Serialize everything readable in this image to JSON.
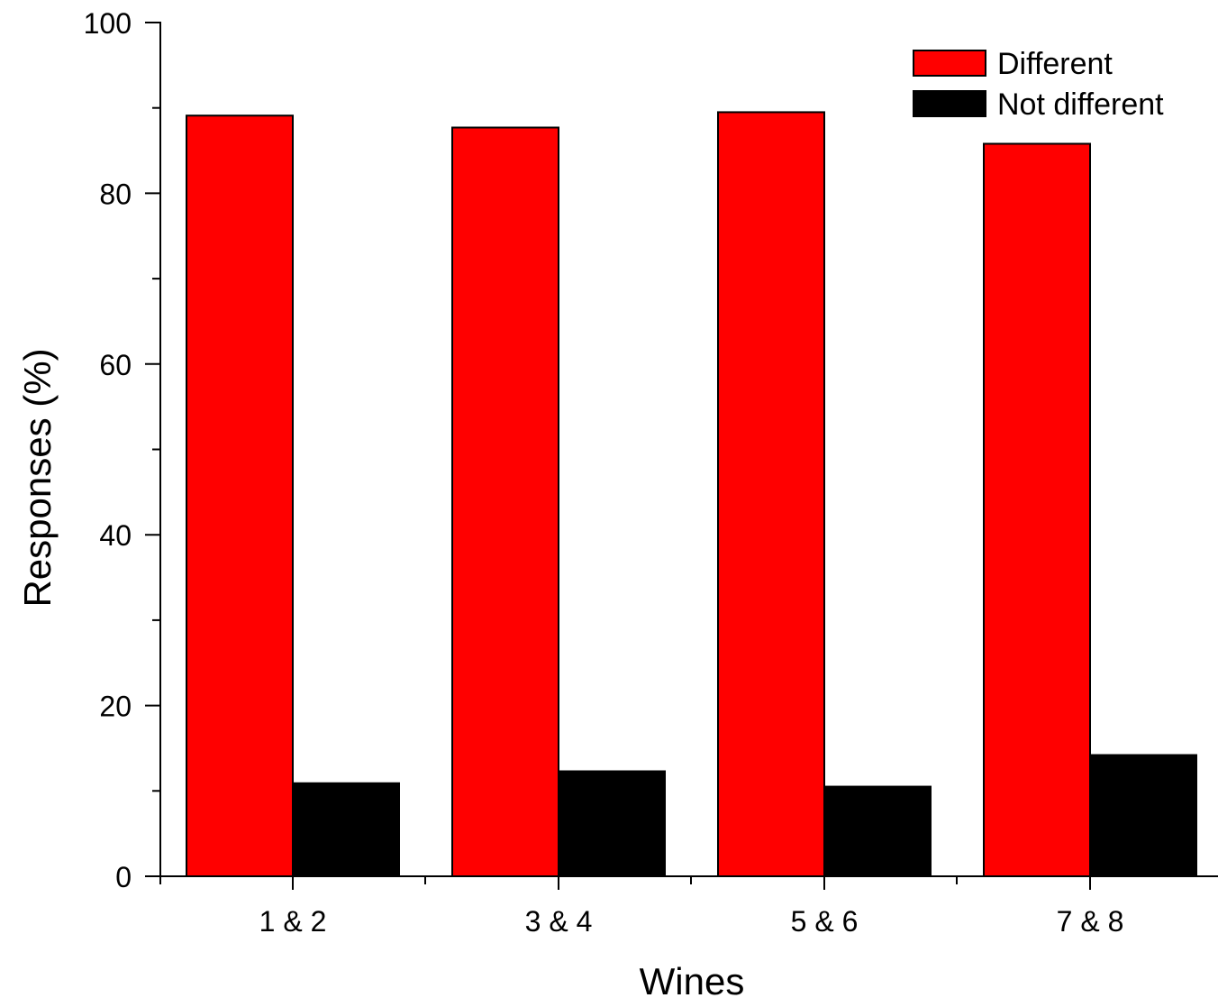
{
  "chart_data": {
    "type": "bar",
    "title": "",
    "xlabel": "Wines",
    "ylabel": "Responses (%)",
    "categories": [
      "1 & 2",
      "3 & 4",
      "5 & 6",
      "7 & 8"
    ],
    "series": [
      {
        "name": "Different",
        "color": "#ff0000",
        "values": [
          89.1,
          87.7,
          89.5,
          85.8
        ]
      },
      {
        "name": "Not different",
        "color": "#000000",
        "values": [
          10.9,
          12.3,
          10.5,
          14.2
        ]
      }
    ],
    "ylim": [
      0,
      100
    ],
    "yticks": [
      0,
      20,
      40,
      60,
      80,
      100
    ],
    "grid": false,
    "legend": "top-right"
  }
}
